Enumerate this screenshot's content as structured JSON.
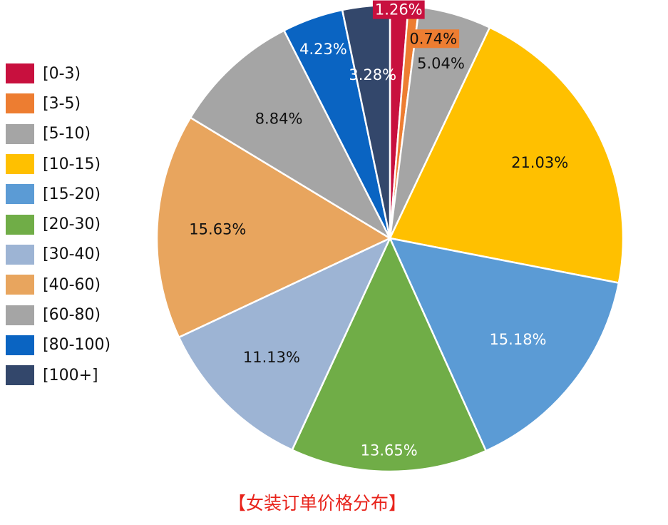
{
  "chart_data": {
    "type": "pie",
    "title": "【女装订单价格分布】",
    "legend_position": "left",
    "categories": [
      "[0-3)",
      "[3-5)",
      "[5-10)",
      "[10-15)",
      "[15-20)",
      "[20-30)",
      "[30-40)",
      "[40-60)",
      "[60-80)",
      "[80-100)",
      "[100+]"
    ],
    "values": [
      1.26,
      0.74,
      5.04,
      21.03,
      15.18,
      13.65,
      11.13,
      15.63,
      8.84,
      4.23,
      3.28
    ],
    "value_labels": [
      "1.26%",
      "0.74%",
      "5.04%",
      "21.03%",
      "15.18%",
      "13.65%",
      "11.13%",
      "15.63%",
      "8.84%",
      "4.23%",
      "3.28%"
    ],
    "colors": [
      "#c8103e",
      "#ed7d31",
      "#a5a5a5",
      "#ffc000",
      "#5b9bd5",
      "#70ad47",
      "#9db4d4",
      "#e8a55e",
      "#a5a5a5",
      "#0a64c2",
      "#33476b"
    ],
    "label_colors": [
      "#ffffff",
      "#111111",
      "#111111",
      "#111111",
      "#ffffff",
      "#ffffff",
      "#111111",
      "#111111",
      "#111111",
      "#ffffff",
      "#ffffff"
    ]
  }
}
